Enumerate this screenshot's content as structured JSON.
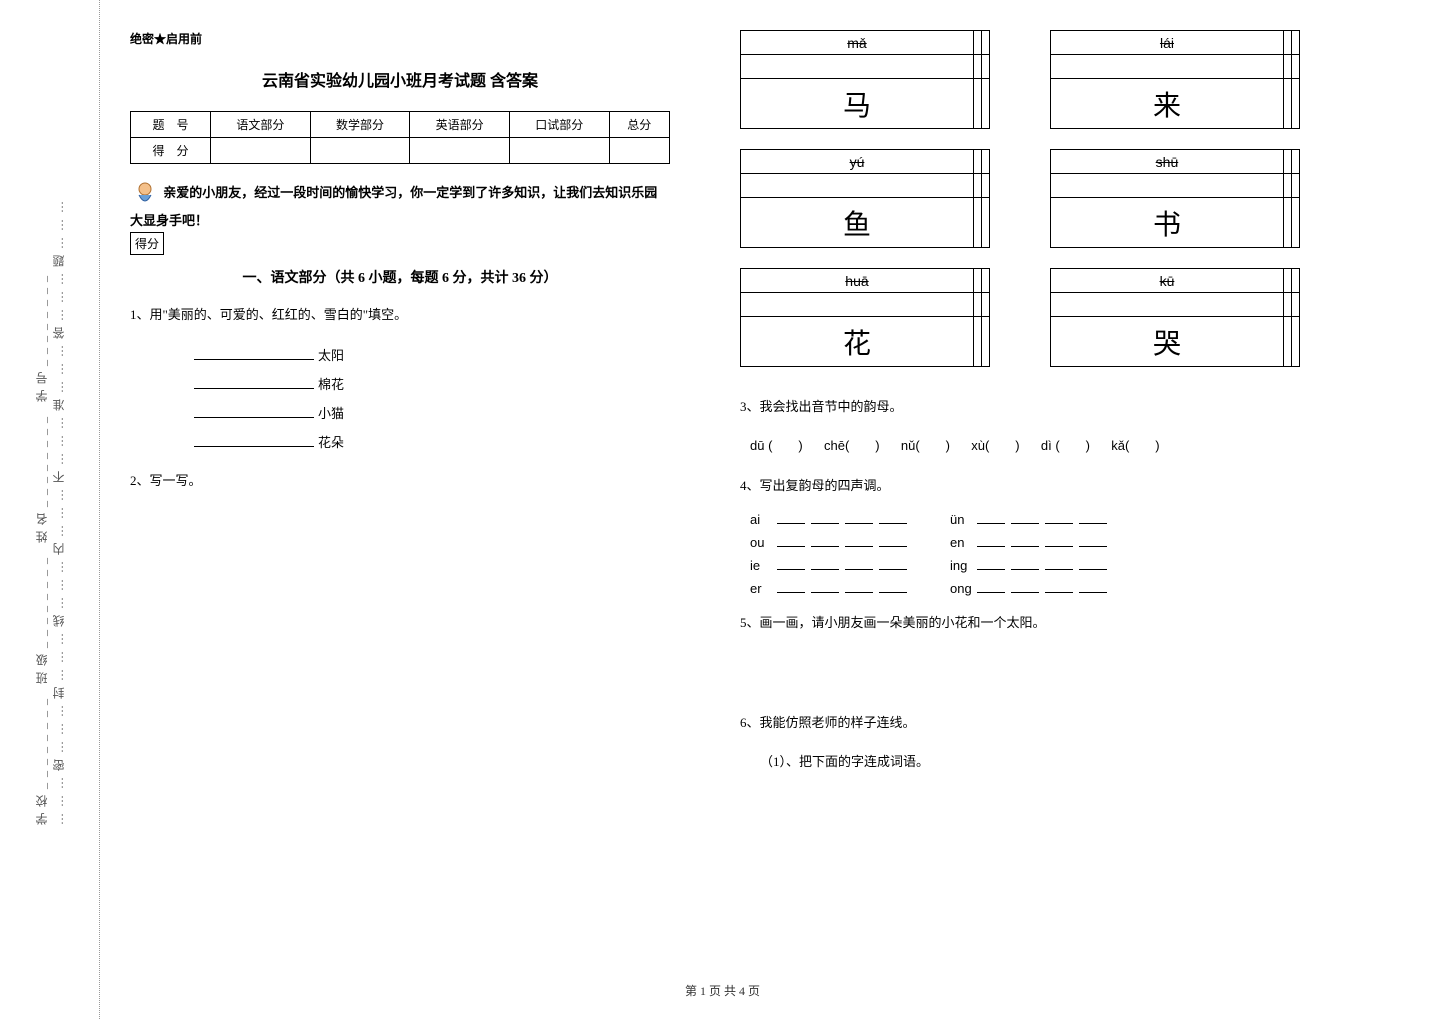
{
  "binding": {
    "text": "学校________ 班级________ 姓名________ 学号________",
    "dotted": "………密………封………线………内………不………准………答………题………"
  },
  "header_small": "绝密★启用前",
  "title": "云南省实验幼儿园小班月考试题 含答案",
  "score_table": {
    "headers": [
      "题　号",
      "语文部分",
      "数学部分",
      "英语部分",
      "口试部分",
      "总分"
    ],
    "row2_label": "得　分"
  },
  "intro": "亲爱的小朋友，经过一段时间的愉快学习，你一定学到了许多知识，让我们去知识乐园大显身手吧！",
  "scorebox": "得分",
  "section1_title": "一、语文部分（共 6 小题，每题 6 分，共计 36 分）",
  "q1": {
    "prompt": "1、用\"美丽的、可爱的、红红的、雪白的\"填空。",
    "items": [
      "太阳",
      "棉花",
      "小猫",
      "花朵"
    ]
  },
  "q2": {
    "prompt": "2、写一写。"
  },
  "char_grids": [
    [
      {
        "pinyin": "mǎ",
        "char": "马"
      },
      {
        "pinyin": "lái",
        "char": "来"
      }
    ],
    [
      {
        "pinyin": "yú",
        "char": "鱼"
      },
      {
        "pinyin": "shū",
        "char": "书"
      }
    ],
    [
      {
        "pinyin": "huā",
        "char": "花"
      },
      {
        "pinyin": "kū",
        "char": "哭"
      }
    ]
  ],
  "q3": {
    "prompt": "3、我会找出音节中的韵母。",
    "items": [
      "dū (　　)",
      "chē(　　)",
      "nǔ(　　)",
      "xù(　　)",
      "dì (　　)",
      "kǎ(　　)"
    ]
  },
  "q4": {
    "prompt": "4、写出复韵母的四声调。",
    "rows": [
      [
        "ai",
        "ün"
      ],
      [
        "ou",
        "en"
      ],
      [
        "ie",
        "ing"
      ],
      [
        "er",
        "ong"
      ]
    ]
  },
  "q5": {
    "prompt": "5、画一画，请小朋友画一朵美丽的小花和一个太阳。"
  },
  "q6": {
    "prompt": "6、我能仿照老师的样子连线。",
    "sub": "（1）、把下面的字连成词语。"
  },
  "footer": "第 1 页 共 4 页"
}
